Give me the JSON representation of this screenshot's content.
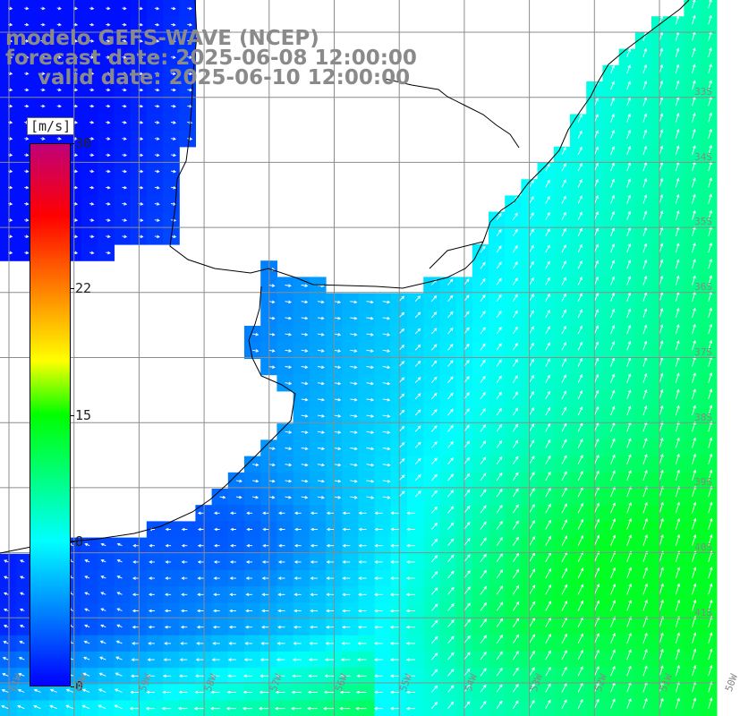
{
  "header": {
    "line1": "modelo GEFS-WAVE (NCEP)",
    "line2": "forecast date: 2025-06-08 12:00:00",
    "line3": "valid date: 2025-06-10 12:00:00"
  },
  "colorbar": {
    "unit": "[m/s]",
    "ticks": [
      "30",
      "22",
      "15",
      "8",
      "0"
    ],
    "tick_values": [
      30,
      22,
      15,
      8,
      0
    ],
    "min": 0,
    "max": 30,
    "stops": [
      {
        "v": 0,
        "c": "#0000ff"
      },
      {
        "v": 8,
        "c": "#00ffff"
      },
      {
        "v": 15,
        "c": "#00ff00"
      },
      {
        "v": 18,
        "c": "#ffff00"
      },
      {
        "v": 22,
        "c": "#ff8000"
      },
      {
        "v": 26,
        "c": "#ff0000"
      },
      {
        "v": 30,
        "c": "#c0007a"
      }
    ]
  },
  "map": {
    "lat_labels": [
      "33S",
      "34S",
      "35S",
      "36S",
      "37S",
      "38S",
      "39S",
      "40S",
      "41S"
    ],
    "lon_labels": [
      "61W",
      "60W",
      "59W",
      "58W",
      "57W",
      "56W",
      "55W",
      "54W",
      "53W",
      "52W",
      "51W",
      "50W"
    ],
    "land_color": "#ffffff",
    "grid_color": "#8c8c8c",
    "arrow_color": "#ffffff"
  }
}
